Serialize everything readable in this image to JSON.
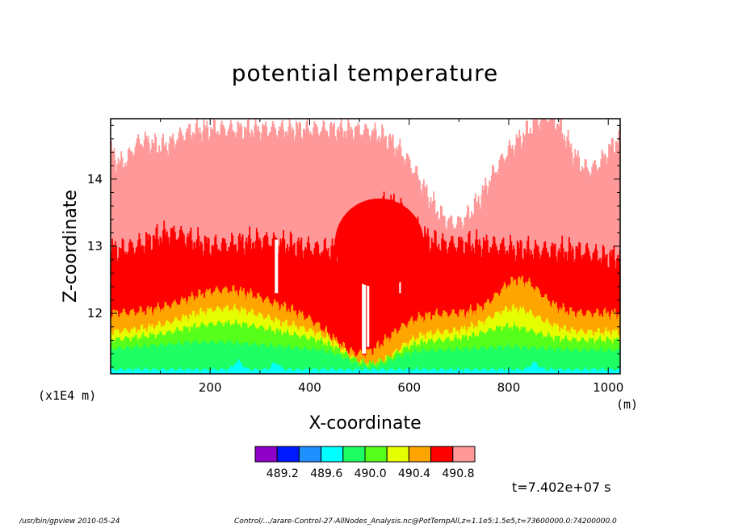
{
  "title": "potential temperature",
  "chart_data": {
    "type": "heatmap",
    "title": "potential temperature",
    "xlabel": "X-coordinate",
    "ylabel": "Z-coordinate",
    "x_unit": "(m)",
    "y_scale_note": "(x1E4 m)",
    "xlim": [
      0,
      1024
    ],
    "ylim": [
      11.1,
      14.9
    ],
    "x_ticks": [
      {
        "value": 200,
        "label": "200"
      },
      {
        "value": 400,
        "label": "400"
      },
      {
        "value": 600,
        "label": "600"
      },
      {
        "value": 800,
        "label": "800"
      },
      {
        "value": 1000,
        "label": "1000"
      }
    ],
    "y_ticks": [
      {
        "value": 12,
        "label": "12"
      },
      {
        "value": 13,
        "label": "13"
      },
      {
        "value": 14,
        "label": "14"
      }
    ],
    "colorbar": {
      "colors": [
        "#8e00c8",
        "#0018ff",
        "#1e90ff",
        "#00ffff",
        "#1eff64",
        "#55ff1a",
        "#e6ff00",
        "#ffa500",
        "#ff0000",
        "#ff9999"
      ],
      "labels": [
        "489.2",
        "489.6",
        "490.0",
        "490.4",
        "490.8"
      ]
    },
    "time_label": "t=7.402e+07 s"
  },
  "footer": {
    "left": "/usr/bin/gpview   2010-05-24",
    "right": "Control/.../arare-Control-27-AllNodes_Analysis.nc@PotTempAll,z=1.1e5:1.5e5,t=73600000.0:74200000.0"
  }
}
